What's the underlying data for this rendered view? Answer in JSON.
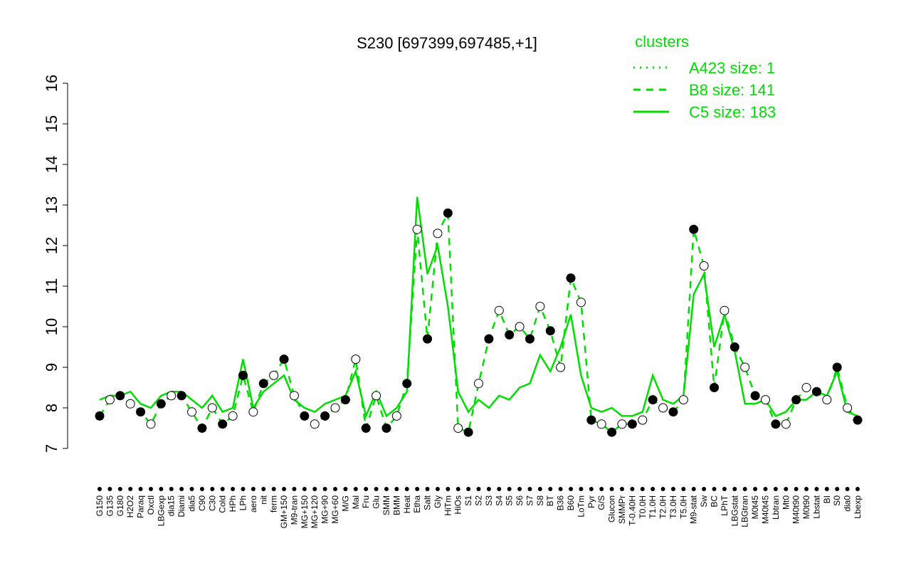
{
  "chart_data": {
    "type": "line",
    "title": "S230 [697399,697485,+1]",
    "legend_title": "clusters",
    "categories": [
      "G150",
      "G135",
      "G180",
      "H2O2",
      "Paraq",
      "Oxctl",
      "LBGexp",
      "dia15",
      "Diami",
      "dia5",
      "C90",
      "C30",
      "Cold",
      "HPh",
      "LPh",
      "aero",
      "nit",
      "ferm",
      "GM+150",
      "M9-tran",
      "MG+150",
      "MG+120",
      "MG+90",
      "MG+60",
      "M/G",
      "Mal",
      "Fru",
      "Glu",
      "SMM",
      "BMM",
      "Heat",
      "Etha",
      "Salt",
      "Gly",
      "HiTm",
      "HiOs",
      "S1",
      "S2",
      "S3",
      "S4",
      "S5",
      "S6",
      "S7",
      "S8",
      "BT",
      "B36",
      "B60",
      "LoTm",
      "Pyr",
      "G/S",
      "Glucon",
      "SMMPr",
      "T-0.40H",
      "T0.0H",
      "T1.0H",
      "T2.0H",
      "T3.0H",
      "T5.0H",
      "M9-stat",
      "Sw",
      "BC",
      "LPhT",
      "LBGstat",
      "LBGtran",
      "M0t45",
      "M40t45",
      "Lbtran",
      "Mt0",
      "M40t90",
      "M0t90",
      "Lbstat",
      "BI",
      "S0",
      "dia0",
      "Lbexp"
    ],
    "series": [
      {
        "name": "A423 size: 1",
        "color": "#00dd00",
        "dash": "dotted",
        "values": [
          null,
          null,
          null,
          null,
          null,
          null,
          null,
          null,
          null,
          null,
          null,
          null,
          null,
          null,
          null,
          null,
          null,
          null,
          null,
          null,
          null,
          null,
          null,
          null,
          null,
          null,
          null,
          null,
          null,
          null,
          null,
          null,
          null,
          null,
          null,
          null,
          null,
          null,
          null,
          null,
          null,
          null,
          null,
          null,
          null,
          null,
          null,
          null,
          null,
          null,
          null,
          null,
          null,
          null,
          null,
          null,
          null,
          null,
          null,
          null,
          null,
          null,
          null,
          null,
          null,
          null,
          null,
          null,
          null,
          null,
          null,
          null,
          null,
          null,
          null
        ]
      },
      {
        "name": "B8 size: 141",
        "color": "#00dd00",
        "dash": "dashed",
        "values": [
          7.8,
          8.2,
          8.3,
          8.1,
          7.9,
          7.6,
          8.1,
          8.3,
          8.3,
          7.9,
          7.5,
          8.0,
          7.6,
          7.8,
          8.8,
          7.9,
          8.6,
          8.8,
          9.2,
          8.3,
          7.8,
          7.6,
          7.8,
          8.0,
          8.2,
          9.2,
          7.5,
          8.3,
          7.5,
          7.8,
          8.6,
          12.4,
          9.7,
          12.3,
          12.8,
          7.5,
          7.4,
          8.6,
          9.7,
          10.4,
          9.8,
          10.0,
          9.7,
          10.5,
          9.9,
          9.0,
          11.2,
          10.6,
          7.7,
          7.6,
          7.4,
          7.6,
          7.6,
          7.7,
          8.2,
          8.0,
          7.9,
          8.2,
          12.4,
          11.5,
          8.5,
          10.4,
          9.5,
          9.0,
          8.3,
          8.2,
          7.6,
          7.6,
          8.2,
          8.5,
          8.4,
          8.2,
          9.0,
          8.0,
          7.7
        ]
      },
      {
        "name": "C5 size: 183",
        "color": "#00dd00",
        "dash": "solid",
        "values": [
          8.2,
          8.3,
          8.3,
          8.4,
          8.1,
          8.0,
          8.3,
          8.4,
          8.4,
          8.2,
          8.0,
          8.3,
          7.9,
          8.0,
          9.2,
          8.0,
          8.4,
          8.6,
          8.8,
          8.2,
          8.0,
          7.9,
          8.1,
          8.2,
          8.3,
          8.9,
          7.8,
          8.4,
          7.8,
          8.0,
          8.4,
          13.2,
          11.3,
          12.0,
          10.5,
          8.4,
          7.9,
          8.2,
          8.0,
          8.3,
          8.2,
          8.5,
          8.6,
          9.3,
          8.9,
          9.5,
          10.3,
          8.8,
          8.0,
          7.9,
          8.0,
          7.8,
          7.8,
          7.9,
          8.8,
          8.2,
          8.1,
          8.3,
          10.8,
          11.3,
          9.5,
          10.3,
          9.4,
          8.1,
          8.1,
          8.2,
          7.8,
          7.9,
          8.2,
          8.2,
          8.4,
          8.3,
          8.9,
          7.9,
          7.8
        ]
      }
    ],
    "ylim": [
      7,
      16
    ],
    "yticks": [
      7,
      8,
      9,
      10,
      11,
      12,
      13,
      14,
      15,
      16
    ]
  }
}
